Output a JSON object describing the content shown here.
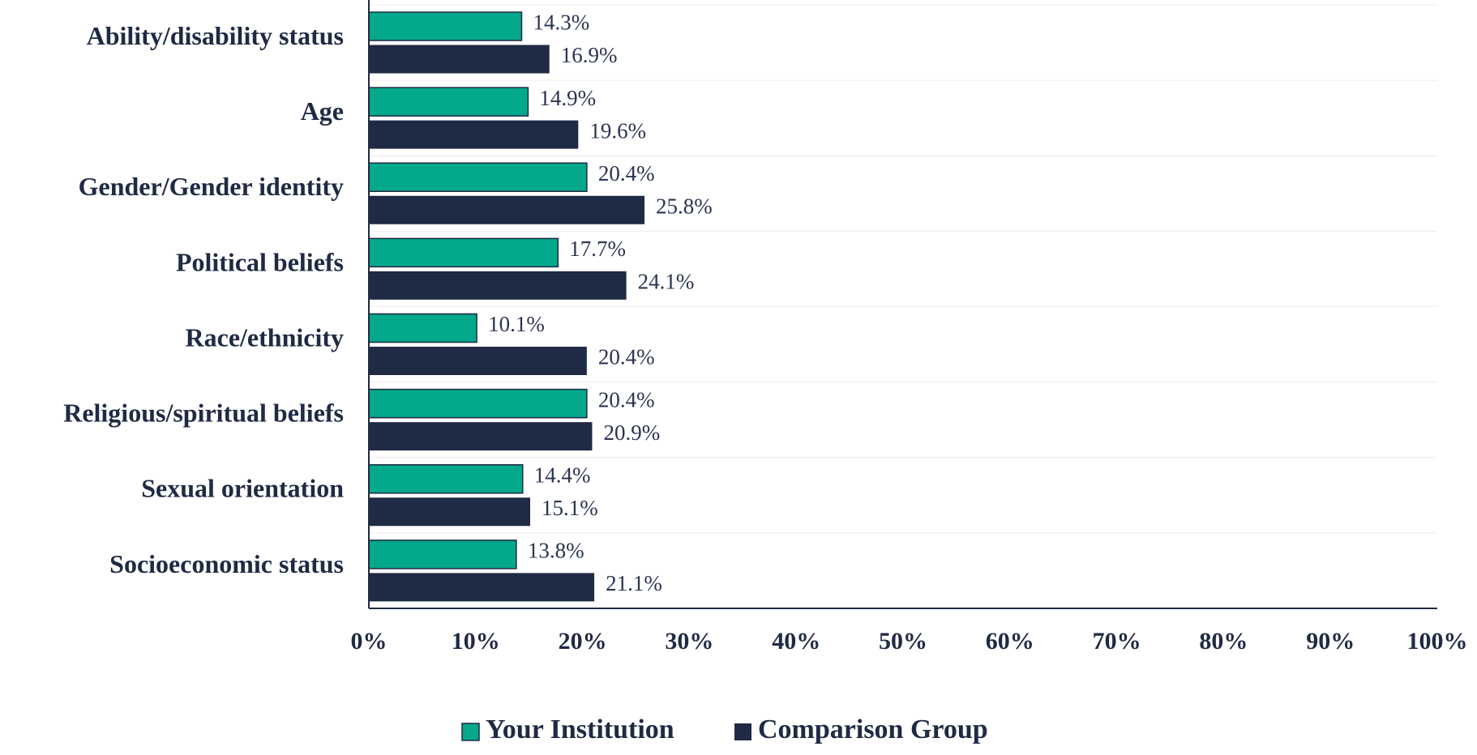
{
  "chart_data": {
    "type": "bar",
    "orientation": "horizontal",
    "categories": [
      "Ability/disability status",
      "Age",
      "Gender/Gender identity",
      "Political beliefs",
      "Race/ethnicity",
      "Religious/spiritual beliefs",
      "Sexual orientation",
      "Socioeconomic status"
    ],
    "series": [
      {
        "name": "Your Institution",
        "color": "#04a88a",
        "values": [
          14.3,
          14.9,
          20.4,
          17.7,
          10.1,
          20.4,
          14.4,
          13.8
        ],
        "value_labels": [
          "14.3%",
          "14.9%",
          "20.4%",
          "17.7%",
          "10.1%",
          "20.4%",
          "14.4%",
          "13.8%"
        ]
      },
      {
        "name": "Comparison Group",
        "color": "#1f2a44",
        "values": [
          16.9,
          19.6,
          25.8,
          24.1,
          20.4,
          20.9,
          15.1,
          21.1
        ],
        "value_labels": [
          "16.9%",
          "19.6%",
          "25.8%",
          "24.1%",
          "20.4%",
          "20.9%",
          "15.1%",
          "21.1%"
        ]
      }
    ],
    "xlim": [
      0,
      100
    ],
    "xticks": [
      {
        "value": 0,
        "label": "0%"
      },
      {
        "value": 10,
        "label": "10%"
      },
      {
        "value": 20,
        "label": "20%"
      },
      {
        "value": 30,
        "label": "30%"
      },
      {
        "value": 40,
        "label": "40%"
      },
      {
        "value": 50,
        "label": "50%"
      },
      {
        "value": 60,
        "label": "60%"
      },
      {
        "value": 70,
        "label": "70%"
      },
      {
        "value": 80,
        "label": "80%"
      },
      {
        "value": 90,
        "label": "90%"
      },
      {
        "value": 100,
        "label": "100%"
      }
    ],
    "legend": "bottom"
  }
}
